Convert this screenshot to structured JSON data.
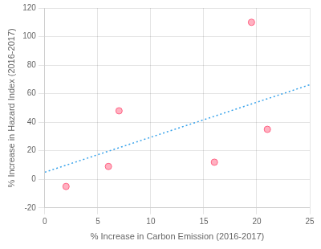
{
  "chart_data": {
    "type": "scatter",
    "x": [
      2,
      6,
      7,
      16,
      19.5,
      21
    ],
    "values": [
      -5,
      9,
      48,
      12,
      110,
      35
    ],
    "trendline": {
      "x": [
        0,
        25
      ],
      "values": [
        5.0,
        66.25
      ],
      "line_style": "dotted"
    },
    "xlabel": "% Increase in Carbon Emission (2016-2017)",
    "ylabel": "% Increase in Hazard Index (2016-2017)",
    "xlim": [
      0,
      25
    ],
    "ylim": [
      -20,
      120
    ],
    "xticks": [
      0,
      5,
      10,
      15,
      20,
      25
    ],
    "yticks": [
      -20,
      0,
      20,
      40,
      60,
      80,
      100,
      120
    ],
    "grid": true
  }
}
